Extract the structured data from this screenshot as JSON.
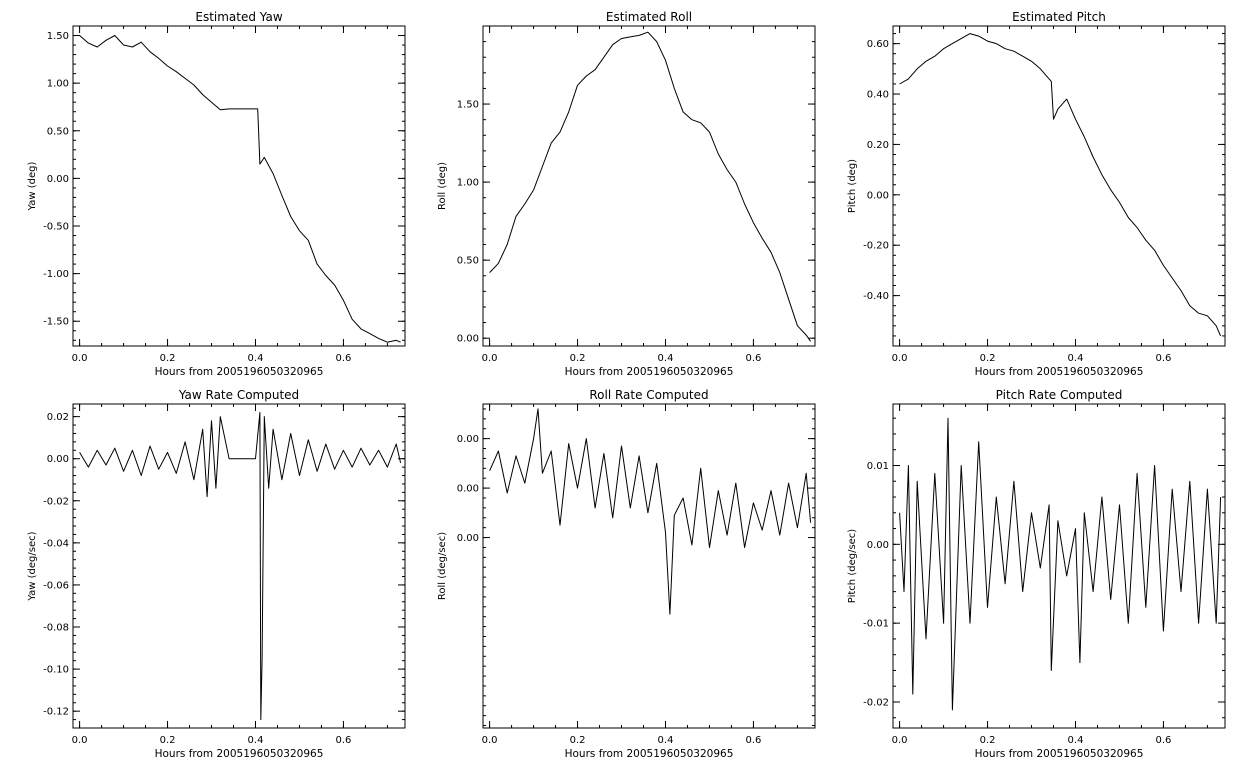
{
  "chart_data": [
    {
      "type": "line",
      "title": "Estimated Yaw",
      "xlabel": "Hours from 2005196050320965",
      "ylabel": "Yaw (deg)",
      "xlim": [
        -0.015,
        0.74
      ],
      "ylim": [
        -1.76,
        1.6
      ],
      "grid": false,
      "x_ticks": [
        0.0,
        0.2,
        0.4,
        0.6
      ],
      "x_tick_labels": [
        "0.0",
        "0.2",
        "0.4",
        "0.6"
      ],
      "y_ticks": [
        1.5,
        1.0,
        0.5,
        0.0,
        -0.5,
        -1.0,
        -1.5
      ],
      "y_tick_labels": [
        "1.50",
        "1.00",
        "0.50",
        "0.00",
        "-0.50",
        "-1.00",
        "-1.50"
      ],
      "series": [
        {
          "x": [
            0.0,
            0.02,
            0.04,
            0.06,
            0.08,
            0.1,
            0.12,
            0.14,
            0.16,
            0.18,
            0.2,
            0.22,
            0.24,
            0.26,
            0.28,
            0.3,
            0.32,
            0.34,
            0.36,
            0.38,
            0.4,
            0.405,
            0.41,
            0.42,
            0.44,
            0.46,
            0.48,
            0.5,
            0.52,
            0.54,
            0.56,
            0.58,
            0.6,
            0.62,
            0.64,
            0.66,
            0.68,
            0.7,
            0.72,
            0.73
          ],
          "y": [
            1.5,
            1.42,
            1.38,
            1.45,
            1.5,
            1.4,
            1.38,
            1.43,
            1.33,
            1.26,
            1.18,
            1.12,
            1.05,
            0.98,
            0.88,
            0.8,
            0.72,
            0.73,
            0.73,
            0.73,
            0.73,
            0.73,
            0.15,
            0.22,
            0.05,
            -0.18,
            -0.4,
            -0.55,
            -0.65,
            -0.9,
            -1.02,
            -1.12,
            -1.28,
            -1.48,
            -1.58,
            -1.63,
            -1.68,
            -1.72,
            -1.7,
            -1.72
          ]
        }
      ]
    },
    {
      "type": "line",
      "title": "Estimated Roll",
      "xlabel": "Hours from 2005196050320965",
      "ylabel": "Roll (deg)",
      "xlim": [
        -0.015,
        0.74
      ],
      "ylim": [
        -0.05,
        2.0
      ],
      "grid": false,
      "x_ticks": [
        0.0,
        0.2,
        0.4,
        0.6
      ],
      "x_tick_labels": [
        "0.0",
        "0.2",
        "0.4",
        "0.6"
      ],
      "y_ticks": [
        1.5,
        1.0,
        0.5,
        0.0
      ],
      "y_tick_labels": [
        "1.50",
        "1.00",
        "0.50",
        "0.00"
      ],
      "series": [
        {
          "x": [
            0.0,
            0.02,
            0.04,
            0.06,
            0.08,
            0.1,
            0.12,
            0.14,
            0.16,
            0.18,
            0.2,
            0.22,
            0.24,
            0.26,
            0.28,
            0.3,
            0.32,
            0.34,
            0.36,
            0.38,
            0.4,
            0.42,
            0.44,
            0.46,
            0.48,
            0.5,
            0.52,
            0.54,
            0.56,
            0.58,
            0.6,
            0.62,
            0.64,
            0.66,
            0.68,
            0.7,
            0.72,
            0.73
          ],
          "y": [
            0.42,
            0.48,
            0.6,
            0.78,
            0.86,
            0.95,
            1.1,
            1.25,
            1.32,
            1.45,
            1.62,
            1.68,
            1.72,
            1.8,
            1.88,
            1.92,
            1.93,
            1.94,
            1.96,
            1.9,
            1.78,
            1.6,
            1.45,
            1.4,
            1.38,
            1.32,
            1.18,
            1.08,
            1.0,
            0.86,
            0.74,
            0.64,
            0.55,
            0.42,
            0.25,
            0.08,
            0.02,
            -0.02
          ]
        }
      ]
    },
    {
      "type": "line",
      "title": "Estimated Pitch",
      "xlabel": "Hours from 2005196050320965",
      "ylabel": "Pitch (deg)",
      "xlim": [
        -0.015,
        0.74
      ],
      "ylim": [
        -0.6,
        0.67
      ],
      "grid": false,
      "x_ticks": [
        0.0,
        0.2,
        0.4,
        0.6
      ],
      "x_tick_labels": [
        "0.0",
        "0.2",
        "0.4",
        "0.6"
      ],
      "y_ticks": [
        0.6,
        0.4,
        0.2,
        0.0,
        -0.2,
        -0.4
      ],
      "y_tick_labels": [
        "0.60",
        "0.40",
        "0.20",
        "0.00",
        "-0.20",
        "-0.40"
      ],
      "series": [
        {
          "x": [
            0.0,
            0.02,
            0.04,
            0.06,
            0.08,
            0.1,
            0.12,
            0.14,
            0.16,
            0.18,
            0.2,
            0.22,
            0.24,
            0.26,
            0.28,
            0.3,
            0.32,
            0.34,
            0.345,
            0.35,
            0.36,
            0.38,
            0.4,
            0.42,
            0.44,
            0.46,
            0.48,
            0.5,
            0.52,
            0.54,
            0.56,
            0.58,
            0.6,
            0.62,
            0.64,
            0.66,
            0.68,
            0.7,
            0.72,
            0.73
          ],
          "y": [
            0.44,
            0.46,
            0.5,
            0.53,
            0.55,
            0.58,
            0.6,
            0.62,
            0.64,
            0.63,
            0.61,
            0.6,
            0.58,
            0.57,
            0.55,
            0.53,
            0.5,
            0.46,
            0.45,
            0.3,
            0.34,
            0.38,
            0.3,
            0.23,
            0.15,
            0.08,
            0.02,
            -0.03,
            -0.09,
            -0.13,
            -0.18,
            -0.22,
            -0.28,
            -0.33,
            -0.38,
            -0.44,
            -0.47,
            -0.48,
            -0.52,
            -0.56
          ]
        }
      ]
    },
    {
      "type": "line",
      "title": "Yaw Rate Computed",
      "xlabel": "Hours from 2005196050320965",
      "ylabel": "Yaw (deg/sec)",
      "xlim": [
        -0.015,
        0.74
      ],
      "ylim": [
        -0.128,
        0.026
      ],
      "grid": false,
      "x_ticks": [
        0.0,
        0.2,
        0.4,
        0.6
      ],
      "x_tick_labels": [
        "0.0",
        "0.2",
        "0.4",
        "0.6"
      ],
      "y_ticks": [
        0.02,
        0.0,
        -0.02,
        -0.04,
        -0.06,
        -0.08,
        -0.1,
        -0.12
      ],
      "y_tick_labels": [
        "0.02",
        "0.00",
        "-0.02",
        "-0.04",
        "-0.06",
        "-0.08",
        "-0.10",
        "-0.12"
      ],
      "series": [
        {
          "x": [
            0.0,
            0.02,
            0.04,
            0.06,
            0.08,
            0.1,
            0.12,
            0.14,
            0.16,
            0.18,
            0.2,
            0.22,
            0.24,
            0.26,
            0.28,
            0.29,
            0.3,
            0.31,
            0.32,
            0.34,
            0.36,
            0.38,
            0.4,
            0.41,
            0.412,
            0.415,
            0.42,
            0.43,
            0.44,
            0.46,
            0.48,
            0.5,
            0.52,
            0.54,
            0.56,
            0.58,
            0.6,
            0.62,
            0.64,
            0.66,
            0.68,
            0.7,
            0.72,
            0.73
          ],
          "y": [
            0.003,
            -0.004,
            0.004,
            -0.003,
            0.005,
            -0.006,
            0.004,
            -0.008,
            0.006,
            -0.005,
            0.003,
            -0.007,
            0.008,
            -0.01,
            0.014,
            -0.018,
            0.018,
            -0.014,
            0.02,
            0.0,
            0.0,
            0.0,
            0.0,
            0.022,
            -0.124,
            -0.095,
            0.02,
            -0.014,
            0.014,
            -0.01,
            0.012,
            -0.008,
            0.009,
            -0.006,
            0.007,
            -0.005,
            0.004,
            -0.004,
            0.005,
            -0.003,
            0.004,
            -0.004,
            0.007,
            -0.002
          ]
        }
      ]
    },
    {
      "type": "line",
      "title": "Roll Rate Computed",
      "xlabel": "Hours from 2005196050320965",
      "ylabel": "Roll (deg/sec)",
      "xlim": [
        -0.015,
        0.74
      ],
      "ylim": [
        -0.0077,
        0.0054
      ],
      "grid": false,
      "x_ticks": [
        0.0,
        0.2,
        0.4,
        0.6
      ],
      "x_tick_labels": [
        "0.0",
        "0.2",
        "0.4",
        "0.6"
      ],
      "y_ticks": [
        0.004,
        0.002,
        0.0
      ],
      "y_tick_labels": [
        "0.00",
        "0.00",
        "0.00"
      ],
      "series": [
        {
          "x": [
            0.0,
            0.02,
            0.04,
            0.06,
            0.08,
            0.1,
            0.11,
            0.12,
            0.14,
            0.16,
            0.18,
            0.2,
            0.22,
            0.24,
            0.26,
            0.28,
            0.3,
            0.32,
            0.34,
            0.36,
            0.38,
            0.4,
            0.41,
            0.42,
            0.44,
            0.46,
            0.48,
            0.5,
            0.52,
            0.54,
            0.56,
            0.58,
            0.6,
            0.62,
            0.64,
            0.66,
            0.68,
            0.7,
            0.72,
            0.73
          ],
          "y": [
            0.0027,
            0.0035,
            0.0018,
            0.0033,
            0.0022,
            0.004,
            0.0052,
            0.0026,
            0.0035,
            0.0005,
            0.0038,
            0.002,
            0.004,
            0.0012,
            0.0034,
            0.0008,
            0.0037,
            0.0012,
            0.0033,
            0.001,
            0.003,
            0.0002,
            -0.0031,
            0.0009,
            0.0016,
            -0.0003,
            0.0028,
            -0.0004,
            0.0019,
            0.0001,
            0.0022,
            -0.0004,
            0.0014,
            0.0003,
            0.0019,
            0.0001,
            0.0022,
            0.0004,
            0.0026,
            0.0006
          ]
        }
      ]
    },
    {
      "type": "line",
      "title": "Pitch Rate Computed",
      "xlabel": "Hours from 2005196050320965",
      "ylabel": "Pitch (deg/sec)",
      "xlim": [
        -0.015,
        0.74
      ],
      "ylim": [
        -0.0233,
        0.0178
      ],
      "grid": false,
      "x_ticks": [
        0.0,
        0.2,
        0.4,
        0.6
      ],
      "x_tick_labels": [
        "0.0",
        "0.2",
        "0.4",
        "0.6"
      ],
      "y_ticks": [
        0.01,
        0.0,
        -0.01,
        -0.02
      ],
      "y_tick_labels": [
        "0.01",
        "0.00",
        "-0.01",
        "-0.02"
      ],
      "series": [
        {
          "x": [
            0.0,
            0.01,
            0.02,
            0.03,
            0.04,
            0.06,
            0.08,
            0.1,
            0.11,
            0.12,
            0.14,
            0.16,
            0.18,
            0.2,
            0.22,
            0.24,
            0.26,
            0.28,
            0.3,
            0.32,
            0.34,
            0.345,
            0.36,
            0.38,
            0.4,
            0.41,
            0.42,
            0.44,
            0.46,
            0.48,
            0.5,
            0.52,
            0.54,
            0.56,
            0.58,
            0.6,
            0.62,
            0.64,
            0.66,
            0.68,
            0.7,
            0.72,
            0.73
          ],
          "y": [
            0.004,
            -0.006,
            0.01,
            -0.019,
            0.008,
            -0.012,
            0.009,
            -0.01,
            0.016,
            -0.021,
            0.01,
            -0.01,
            0.013,
            -0.008,
            0.006,
            -0.005,
            0.008,
            -0.006,
            0.004,
            -0.003,
            0.005,
            -0.016,
            0.003,
            -0.004,
            0.002,
            -0.015,
            0.004,
            -0.006,
            0.006,
            -0.007,
            0.005,
            -0.01,
            0.009,
            -0.008,
            0.01,
            -0.011,
            0.007,
            -0.006,
            0.008,
            -0.01,
            0.007,
            -0.01,
            0.006
          ]
        }
      ]
    }
  ]
}
